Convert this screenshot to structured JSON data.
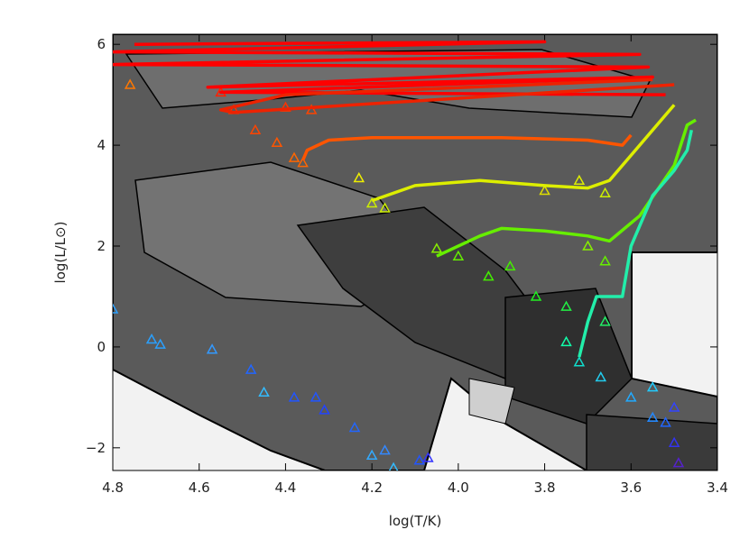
{
  "chart_data": {
    "type": "line",
    "xlabel": "log(T/K)",
    "ylabel": "log(L/L⊙)",
    "xlim": [
      4.8,
      3.4
    ],
    "ylim": [
      -2.45,
      6.2
    ],
    "xticks": [
      4.8,
      4.6,
      4.4,
      4.2,
      {
        "value": 4,
        "label": "4.0"
      },
      3.8,
      3.6,
      3.4
    ],
    "yticks": [
      {
        "value": -2,
        "label": "−2"
      },
      0,
      2,
      4,
      6
    ],
    "tracks": [
      {
        "color": "#ff0000",
        "x": [
          4.75,
          3.8,
          4.8,
          3.58,
          4.8,
          3.56,
          4.58,
          3.55,
          4.55,
          3.52
        ],
        "y": [
          6.0,
          6.05,
          5.85,
          5.8,
          5.6,
          5.55,
          5.15,
          5.35,
          5.05,
          5.0
        ]
      },
      {
        "color": "#ee2200",
        "x": [
          3.55,
          4.4,
          4.55,
          4.52,
          3.5
        ],
        "y": [
          5.3,
          5.0,
          4.7,
          4.65,
          5.2
        ]
      },
      {
        "color": "#ff5500",
        "x": [
          4.36,
          4.35,
          4.3,
          4.2,
          3.9,
          3.7,
          3.62,
          3.6
        ],
        "y": [
          3.7,
          3.9,
          4.1,
          4.15,
          4.15,
          4.1,
          4.0,
          4.2
        ]
      },
      {
        "color": "#ddee00",
        "x": [
          4.2,
          4.1,
          3.95,
          3.8,
          3.7,
          3.65,
          3.58,
          3.5
        ],
        "y": [
          2.9,
          3.2,
          3.3,
          3.2,
          3.15,
          3.3,
          4.0,
          4.8
        ]
      },
      {
        "color": "#66ee00",
        "x": [
          4.05,
          3.95,
          3.9,
          3.8,
          3.7,
          3.65,
          3.58,
          3.5,
          3.47,
          3.45
        ],
        "y": [
          1.8,
          2.2,
          2.35,
          2.3,
          2.2,
          2.1,
          2.6,
          3.6,
          4.4,
          4.5
        ]
      },
      {
        "color": "#22eeaa",
        "x": [
          3.72,
          3.7,
          3.68,
          3.62,
          3.6,
          3.55,
          3.5,
          3.47,
          3.46
        ],
        "y": [
          -0.2,
          0.5,
          1.0,
          1.0,
          2.0,
          3.0,
          3.5,
          3.9,
          4.3
        ]
      }
    ],
    "points": {
      "x": [
        4.8,
        4.71,
        4.69,
        4.57,
        4.48,
        4.45,
        4.38,
        4.33,
        4.31,
        4.24,
        4.2,
        4.17,
        4.15,
        4.09,
        4.07,
        4.76,
        4.55,
        4.52,
        4.47,
        4.42,
        4.38,
        4.36,
        4.34,
        4.4,
        4.23,
        4.2,
        4.17,
        3.8,
        3.72,
        3.66,
        4.05,
        4.0,
        3.93,
        3.88,
        3.82,
        3.75,
        3.7,
        3.66,
        3.66,
        3.75,
        3.72,
        3.67,
        3.6,
        3.55,
        3.55,
        3.52,
        3.5,
        3.5,
        3.49
      ],
      "y": [
        0.75,
        0.15,
        0.05,
        -0.05,
        -0.45,
        -0.9,
        -1.0,
        -1.0,
        -1.25,
        -1.6,
        -2.15,
        -2.05,
        -2.4,
        -2.25,
        -2.2,
        5.2,
        5.05,
        4.7,
        4.3,
        4.05,
        3.75,
        3.65,
        4.7,
        4.75,
        3.35,
        2.85,
        2.75,
        3.1,
        3.3,
        3.05,
        1.95,
        1.8,
        1.4,
        1.6,
        1.0,
        0.8,
        2.0,
        1.7,
        0.5,
        0.1,
        -0.3,
        -0.6,
        -1.0,
        -0.8,
        -1.4,
        -1.5,
        -1.2,
        -1.9,
        -2.3
      ],
      "colors": [
        "#2aa0ff",
        "#2aa0ff",
        "#2aa0ff",
        "#3399ff",
        "#2266ff",
        "#33bbff",
        "#2255ff",
        "#2255ff",
        "#2244ff",
        "#2266ff",
        "#33aaff",
        "#3388ff",
        "#33bbff",
        "#2255ff",
        "#3333ff",
        "#ff7700",
        "#ff2200",
        "#ff3300",
        "#ff4400",
        "#ff5500",
        "#ff6600",
        "#ff6600",
        "#ff4400",
        "#ff3300",
        "#eeee00",
        "#ccee00",
        "#ccee00",
        "#dddd00",
        "#ddee00",
        "#ccee00",
        "#88ee00",
        "#66ee00",
        "#44ee00",
        "#44ee00",
        "#22ee22",
        "#22ee44",
        "#88ee00",
        "#66ee00",
        "#22ee66",
        "#11ffaa",
        "#11ddcc",
        "#22ccee",
        "#22aaff",
        "#22ccff",
        "#2288ff",
        "#2266ff",
        "#3344ff",
        "#3333ee",
        "#5522cc"
      ]
    }
  }
}
